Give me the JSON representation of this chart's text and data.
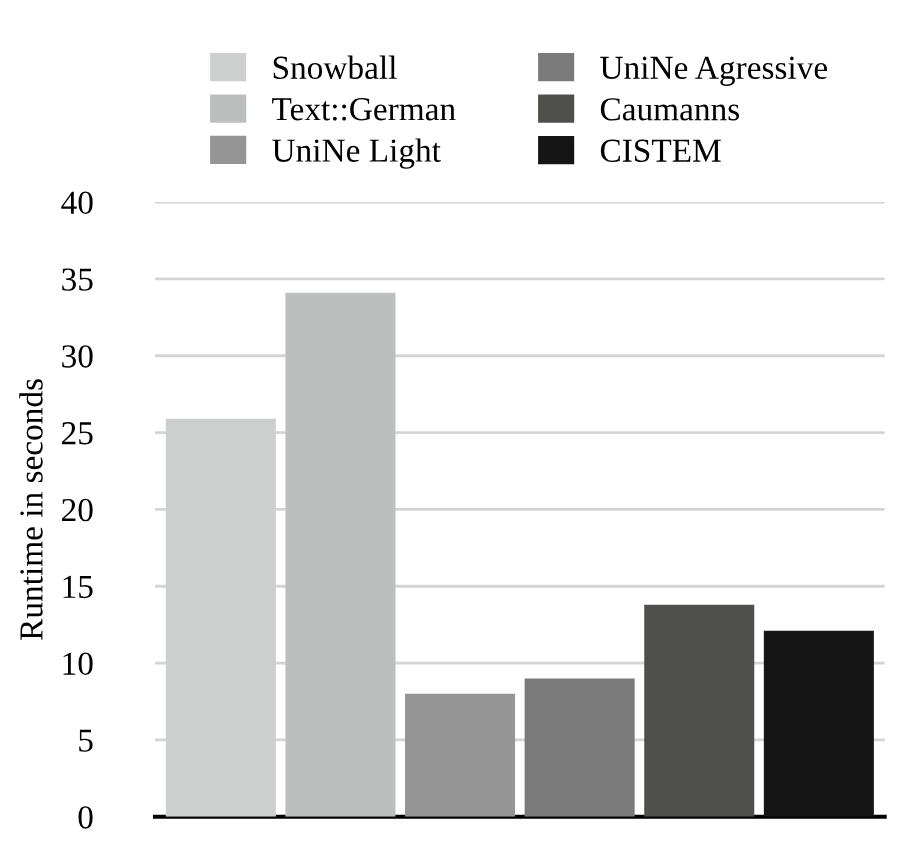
{
  "chart_data": {
    "type": "bar",
    "ylabel": "Runtime in seconds",
    "categories": [
      null,
      null,
      null,
      null,
      null,
      null
    ],
    "series": [
      {
        "name": "Snowball",
        "color": "#cdcfce",
        "values": [
          25.9,
          null,
          null,
          null,
          null,
          null
        ]
      },
      {
        "name": "Text::German",
        "color": "#bdbfbe",
        "values": [
          null,
          34.1,
          null,
          null,
          null,
          null
        ]
      },
      {
        "name": "UniNe Light",
        "color": "#959595",
        "values": [
          null,
          null,
          8.0,
          null,
          null,
          null
        ]
      },
      {
        "name": "UniNe Agressive",
        "color": "#7a7a7a",
        "values": [
          null,
          null,
          null,
          9.0,
          null,
          null
        ]
      },
      {
        "name": "Caumanns",
        "color": "#4f4f4d",
        "values": [
          null,
          null,
          null,
          null,
          13.8,
          null
        ]
      },
      {
        "name": "CISTEM",
        "color": "#151515",
        "values": [
          null,
          null,
          null,
          null,
          null,
          12.1
        ]
      }
    ],
    "ylim": [
      0,
      40
    ],
    "yticks": [
      0,
      5,
      10,
      15,
      20,
      25,
      30,
      35,
      40
    ],
    "grid": "y",
    "legend": "top"
  }
}
